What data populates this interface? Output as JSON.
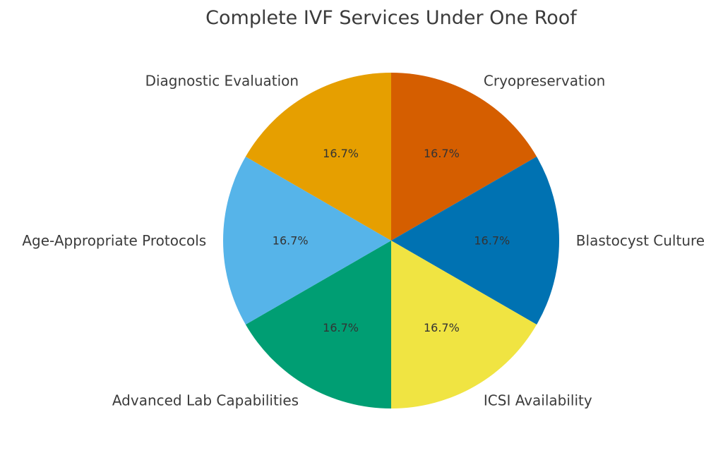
{
  "chart_data": {
    "type": "pie",
    "title": "Complete IVF Services Under One Roof",
    "slices": [
      {
        "label": "Cryopreservation",
        "value": 16.7,
        "percent_label": "16.7%",
        "color": "#D55E00"
      },
      {
        "label": "Blastocyst Culture",
        "value": 16.7,
        "percent_label": "16.7%",
        "color": "#0072B2"
      },
      {
        "label": "ICSI Availability",
        "value": 16.7,
        "percent_label": "16.7%",
        "color": "#F0E442"
      },
      {
        "label": "Advanced Lab Capabilities",
        "value": 16.7,
        "percent_label": "16.7%",
        "color": "#009E73"
      },
      {
        "label": "Age-Appropriate Protocols",
        "value": 16.7,
        "percent_label": "16.7%",
        "color": "#56B4E9"
      },
      {
        "label": "Diagnostic Evaluation",
        "value": 16.7,
        "percent_label": "16.7%",
        "color": "#E69F00"
      }
    ],
    "start_angle": "top",
    "direction": "clockwise",
    "legend": "none"
  }
}
